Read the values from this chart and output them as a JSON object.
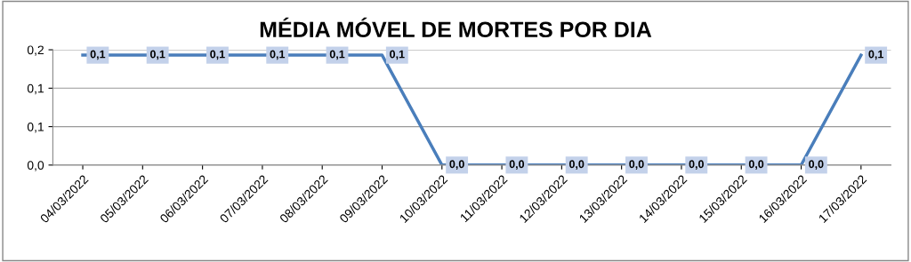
{
  "chart_data": {
    "type": "line",
    "title": "MÉDIA MÓVEL DE MORTES POR DIA",
    "categories": [
      "04/03/2022",
      "05/03/2022",
      "06/03/2022",
      "07/03/2022",
      "08/03/2022",
      "09/03/2022",
      "10/03/2022",
      "11/03/2022",
      "12/03/2022",
      "13/03/2022",
      "14/03/2022",
      "15/03/2022",
      "16/03/2022",
      "17/03/2022"
    ],
    "series": [
      {
        "color": "#4a7ebb",
        "values": [
          0.143,
          0.143,
          0.143,
          0.143,
          0.143,
          0.143,
          0,
          0,
          0,
          0,
          0,
          0,
          0,
          0.143
        ],
        "value_labels": [
          "0,1",
          "0,1",
          "0,1",
          "0,1",
          "0,1",
          "0,1",
          "0,0",
          "0,0",
          "0,0",
          "0,0",
          "0,0",
          "0,0",
          "0,0",
          "0,1"
        ]
      }
    ],
    "ylim": [
      0,
      0.15
    ],
    "yticks": [
      {
        "value": 0,
        "label": "0,0"
      },
      {
        "value": 0.05,
        "label": "0,1"
      },
      {
        "value": 0.1,
        "label": "0,1"
      },
      {
        "value": 0.15,
        "label": "0,2"
      }
    ],
    "grid": "y",
    "marker": "none",
    "line_style": "solid",
    "legend": false
  }
}
